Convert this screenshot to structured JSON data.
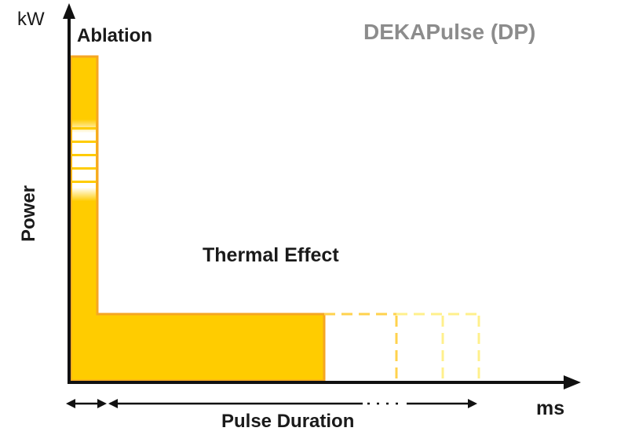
{
  "diagram": {
    "title": "DEKAPulse (DP)",
    "y_unit": "kW",
    "y_axis_label": "Power",
    "x_unit": "ms",
    "phase_ablation_label": "Ablation",
    "phase_thermal_label": "Thermal Effect",
    "duration_label": "Pulse Duration"
  },
  "colors": {
    "pulse_fill": "#ffcc00",
    "pulse_edge": "#f5a623",
    "dash_near": "#ffd24d",
    "dash_far": "#fff08c",
    "axis": "#111111",
    "title": "#8c8c8c",
    "text": "#1a1a1a"
  }
}
